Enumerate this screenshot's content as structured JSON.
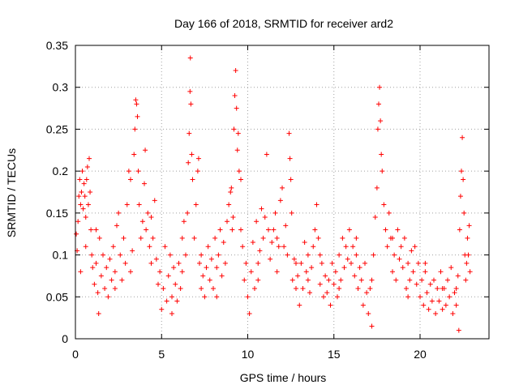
{
  "chart_data": {
    "type": "scatter",
    "title": "Day 166 of 2018, SRMTID for receiver ard2",
    "xlabel": "GPS time / hours",
    "ylabel": "SRMTID / TECUs",
    "xlim": [
      0,
      24
    ],
    "ylim": [
      0,
      0.35
    ],
    "xticks": [
      0,
      5,
      10,
      15,
      20
    ],
    "xtick_labels": [
      "0",
      "5",
      "10",
      "15",
      "20"
    ],
    "yticks": [
      0,
      0.05,
      0.1,
      0.15,
      0.2,
      0.25,
      0.3,
      0.35
    ],
    "ytick_labels": [
      "0",
      "0.05",
      "0.1",
      "0.15",
      "0.2",
      "0.25",
      "0.3",
      "0.35"
    ],
    "grid": true,
    "marker": "+",
    "series": [
      {
        "name": "SRMTID",
        "color": "#ff0000",
        "points": [
          [
            0.05,
            0.125
          ],
          [
            0.1,
            0.105
          ],
          [
            0.15,
            0.14
          ],
          [
            0.2,
            0.17
          ],
          [
            0.25,
            0.19
          ],
          [
            0.3,
            0.16
          ],
          [
            0.35,
            0.175
          ],
          [
            0.4,
            0.2
          ],
          [
            0.45,
            0.155
          ],
          [
            0.5,
            0.185
          ],
          [
            0.55,
            0.17
          ],
          [
            0.6,
            0.145
          ],
          [
            0.65,
            0.19
          ],
          [
            0.7,
            0.205
          ],
          [
            0.75,
            0.16
          ],
          [
            0.8,
            0.215
          ],
          [
            0.85,
            0.175
          ],
          [
            0.9,
            0.13
          ],
          [
            0.95,
            0.1
          ],
          [
            1.0,
            0.085
          ],
          [
            1.1,
            0.065
          ],
          [
            1.2,
            0.09
          ],
          [
            1.3,
            0.055
          ],
          [
            1.35,
            0.03
          ],
          [
            1.4,
            0.12
          ],
          [
            1.5,
            0.075
          ],
          [
            1.6,
            0.1
          ],
          [
            1.7,
            0.06
          ],
          [
            1.8,
            0.085
          ],
          [
            1.9,
            0.05
          ],
          [
            2.0,
            0.095
          ],
          [
            2.1,
            0.07
          ],
          [
            2.2,
            0.11
          ],
          [
            2.3,
            0.08
          ],
          [
            2.4,
            0.135
          ],
          [
            2.5,
            0.15
          ],
          [
            2.6,
            0.1
          ],
          [
            2.7,
            0.07
          ],
          [
            2.8,
            0.12
          ],
          [
            2.9,
            0.09
          ],
          [
            3.0,
            0.16
          ],
          [
            3.1,
            0.2
          ],
          [
            3.2,
            0.19
          ],
          [
            3.3,
            0.105
          ],
          [
            3.4,
            0.22
          ],
          [
            3.45,
            0.25
          ],
          [
            3.5,
            0.285
          ],
          [
            3.55,
            0.28
          ],
          [
            3.6,
            0.265
          ],
          [
            3.65,
            0.2
          ],
          [
            3.7,
            0.16
          ],
          [
            3.8,
            0.12
          ],
          [
            3.9,
            0.14
          ],
          [
            4.0,
            0.185
          ],
          [
            4.05,
            0.225
          ],
          [
            4.1,
            0.13
          ],
          [
            4.2,
            0.15
          ],
          [
            4.3,
            0.11
          ],
          [
            4.4,
            0.145
          ],
          [
            4.5,
            0.12
          ],
          [
            4.6,
            0.165
          ],
          [
            4.7,
            0.095
          ],
          [
            4.8,
            0.065
          ],
          [
            4.9,
            0.08
          ],
          [
            5.0,
            0.035
          ],
          [
            5.1,
            0.06
          ],
          [
            5.2,
            0.11
          ],
          [
            5.3,
            0.045
          ],
          [
            5.4,
            0.075
          ],
          [
            5.5,
            0.1
          ],
          [
            5.6,
            0.05
          ],
          [
            5.7,
            0.085
          ],
          [
            5.8,
            0.065
          ],
          [
            5.9,
            0.045
          ],
          [
            6.0,
            0.09
          ],
          [
            6.1,
            0.06
          ],
          [
            6.2,
            0.08
          ],
          [
            6.3,
            0.14
          ],
          [
            6.4,
            0.1
          ],
          [
            6.5,
            0.15
          ],
          [
            6.55,
            0.21
          ],
          [
            6.6,
            0.245
          ],
          [
            6.65,
            0.295
          ],
          [
            6.67,
            0.335
          ],
          [
            6.7,
            0.28
          ],
          [
            6.75,
            0.22
          ],
          [
            6.8,
            0.19
          ],
          [
            6.9,
            0.12
          ],
          [
            7.0,
            0.16
          ],
          [
            7.1,
            0.2
          ],
          [
            7.15,
            0.215
          ],
          [
            7.2,
            0.09
          ],
          [
            7.3,
            0.06
          ],
          [
            7.4,
            0.075
          ],
          [
            7.5,
            0.05
          ],
          [
            7.6,
            0.085
          ],
          [
            7.7,
            0.11
          ],
          [
            7.8,
            0.07
          ],
          [
            7.9,
            0.095
          ],
          [
            8.0,
            0.06
          ],
          [
            8.1,
            0.12
          ],
          [
            8.2,
            0.085
          ],
          [
            8.3,
            0.1
          ],
          [
            8.4,
            0.13
          ],
          [
            8.5,
            0.075
          ],
          [
            8.6,
            0.115
          ],
          [
            8.7,
            0.09
          ],
          [
            8.8,
            0.14
          ],
          [
            8.9,
            0.16
          ],
          [
            9.0,
            0.175
          ],
          [
            9.05,
            0.18
          ],
          [
            9.1,
            0.13
          ],
          [
            9.15,
            0.145
          ],
          [
            9.2,
            0.25
          ],
          [
            9.25,
            0.29
          ],
          [
            9.3,
            0.32
          ],
          [
            9.35,
            0.275
          ],
          [
            9.4,
            0.225
          ],
          [
            9.45,
            0.245
          ],
          [
            9.5,
            0.2
          ],
          [
            9.6,
            0.19
          ],
          [
            9.7,
            0.11
          ],
          [
            9.8,
            0.07
          ],
          [
            9.9,
            0.09
          ],
          [
            10.0,
            0.05
          ],
          [
            10.1,
            0.03
          ],
          [
            10.2,
            0.08
          ],
          [
            10.3,
            0.115
          ],
          [
            10.4,
            0.06
          ],
          [
            10.5,
            0.14
          ],
          [
            10.6,
            0.09
          ],
          [
            10.7,
            0.105
          ],
          [
            10.8,
            0.155
          ],
          [
            10.9,
            0.12
          ],
          [
            11.0,
            0.145
          ],
          [
            11.1,
            0.22
          ],
          [
            11.2,
            0.13
          ],
          [
            11.3,
            0.095
          ],
          [
            11.4,
            0.115
          ],
          [
            11.5,
            0.13
          ],
          [
            11.6,
            0.15
          ],
          [
            11.7,
            0.08
          ],
          [
            11.8,
            0.11
          ],
          [
            11.9,
            0.165
          ],
          [
            12.0,
            0.18
          ],
          [
            12.1,
            0.11
          ],
          [
            12.2,
            0.135
          ],
          [
            12.3,
            0.1
          ],
          [
            12.4,
            0.245
          ],
          [
            12.45,
            0.215
          ],
          [
            12.5,
            0.19
          ],
          [
            12.55,
            0.15
          ],
          [
            12.6,
            0.07
          ],
          [
            12.7,
            0.095
          ],
          [
            12.8,
            0.06
          ],
          [
            12.9,
            0.075
          ],
          [
            13.0,
            0.04
          ],
          [
            13.1,
            0.09
          ],
          [
            13.2,
            0.06
          ],
          [
            13.3,
            0.115
          ],
          [
            13.4,
            0.08
          ],
          [
            13.5,
            0.1
          ],
          [
            13.6,
            0.055
          ],
          [
            13.7,
            0.085
          ],
          [
            13.8,
            0.11
          ],
          [
            13.9,
            0.13
          ],
          [
            14.0,
            0.16
          ],
          [
            14.1,
            0.12
          ],
          [
            14.2,
            0.065
          ],
          [
            14.3,
            0.09
          ],
          [
            14.4,
            0.05
          ],
          [
            14.5,
            0.075
          ],
          [
            14.6,
            0.055
          ],
          [
            14.7,
            0.07
          ],
          [
            14.8,
            0.04
          ],
          [
            14.9,
            0.09
          ],
          [
            15.0,
            0.065
          ],
          [
            15.1,
            0.08
          ],
          [
            15.2,
            0.05
          ],
          [
            15.3,
            0.1
          ],
          [
            15.4,
            0.07
          ],
          [
            15.5,
            0.12
          ],
          [
            15.6,
            0.085
          ],
          [
            15.7,
            0.11
          ],
          [
            15.8,
            0.095
          ],
          [
            15.9,
            0.13
          ],
          [
            16.0,
            0.09
          ],
          [
            16.1,
            0.11
          ],
          [
            16.2,
            0.075
          ],
          [
            16.3,
            0.1
          ],
          [
            16.4,
            0.06
          ],
          [
            16.5,
            0.085
          ],
          [
            16.6,
            0.07
          ],
          [
            16.7,
            0.04
          ],
          [
            16.8,
            0.09
          ],
          [
            16.9,
            0.055
          ],
          [
            17.0,
            0.03
          ],
          [
            17.1,
            0.06
          ],
          [
            17.2,
            0.015
          ],
          [
            17.3,
            0.1
          ],
          [
            17.4,
            0.145
          ],
          [
            17.5,
            0.18
          ],
          [
            17.55,
            0.25
          ],
          [
            17.6,
            0.28
          ],
          [
            17.65,
            0.3
          ],
          [
            17.7,
            0.26
          ],
          [
            17.75,
            0.22
          ],
          [
            17.8,
            0.2
          ],
          [
            17.9,
            0.16
          ],
          [
            18.0,
            0.13
          ],
          [
            18.1,
            0.11
          ],
          [
            18.2,
            0.15
          ],
          [
            18.3,
            0.12
          ],
          [
            18.4,
            0.08
          ],
          [
            18.5,
            0.1
          ],
          [
            18.6,
            0.07
          ],
          [
            18.7,
            0.13
          ],
          [
            18.8,
            0.095
          ],
          [
            18.9,
            0.11
          ],
          [
            19.0,
            0.085
          ],
          [
            19.1,
            0.12
          ],
          [
            19.2,
            0.06
          ],
          [
            19.3,
            0.09
          ],
          [
            19.4,
            0.07
          ],
          [
            19.5,
            0.105
          ],
          [
            19.6,
            0.08
          ],
          [
            19.7,
            0.11
          ],
          [
            19.8,
            0.065
          ],
          [
            19.9,
            0.09
          ],
          [
            20.0,
            0.05
          ],
          [
            20.1,
            0.07
          ],
          [
            20.2,
            0.04
          ],
          [
            20.3,
            0.08
          ],
          [
            20.4,
            0.055
          ],
          [
            20.5,
            0.035
          ],
          [
            20.6,
            0.065
          ],
          [
            20.7,
            0.045
          ],
          [
            20.8,
            0.07
          ],
          [
            20.9,
            0.03
          ],
          [
            21.0,
            0.06
          ],
          [
            21.1,
            0.045
          ],
          [
            21.2,
            0.08
          ],
          [
            21.3,
            0.035
          ],
          [
            21.4,
            0.06
          ],
          [
            21.5,
            0.04
          ],
          [
            21.6,
            0.07
          ],
          [
            21.7,
            0.05
          ],
          [
            21.8,
            0.085
          ],
          [
            21.9,
            0.03
          ],
          [
            22.0,
            0.055
          ],
          [
            22.1,
            0.04
          ],
          [
            22.2,
            0.075
          ],
          [
            22.25,
            0.01
          ],
          [
            22.3,
            0.13
          ],
          [
            22.35,
            0.17
          ],
          [
            22.4,
            0.2
          ],
          [
            22.45,
            0.24
          ],
          [
            22.5,
            0.19
          ],
          [
            22.55,
            0.15
          ],
          [
            22.6,
            0.1
          ],
          [
            22.65,
            0.07
          ],
          [
            22.7,
            0.09
          ],
          [
            22.75,
            0.12
          ],
          [
            22.8,
            0.1
          ],
          [
            22.85,
            0.135
          ],
          [
            22.9,
            0.08
          ],
          [
            0.3,
            0.08
          ],
          [
            0.6,
            0.11
          ],
          [
            1.2,
            0.13
          ],
          [
            2.3,
            0.06
          ],
          [
            3.2,
            0.08
          ],
          [
            4.4,
            0.09
          ],
          [
            5.6,
            0.03
          ],
          [
            6.2,
            0.12
          ],
          [
            7.3,
            0.1
          ],
          [
            8.2,
            0.05
          ],
          [
            9.6,
            0.13
          ],
          [
            10.6,
            0.07
          ],
          [
            11.7,
            0.12
          ],
          [
            12.8,
            0.09
          ],
          [
            13.5,
            0.07
          ],
          [
            14.2,
            0.1
          ],
          [
            15.3,
            0.06
          ],
          [
            16.3,
            0.12
          ],
          [
            17.2,
            0.07
          ],
          [
            18.4,
            0.12
          ],
          [
            19.3,
            0.05
          ],
          [
            20.3,
            0.09
          ],
          [
            21.3,
            0.06
          ],
          [
            22.1,
            0.06
          ]
        ]
      }
    ]
  }
}
